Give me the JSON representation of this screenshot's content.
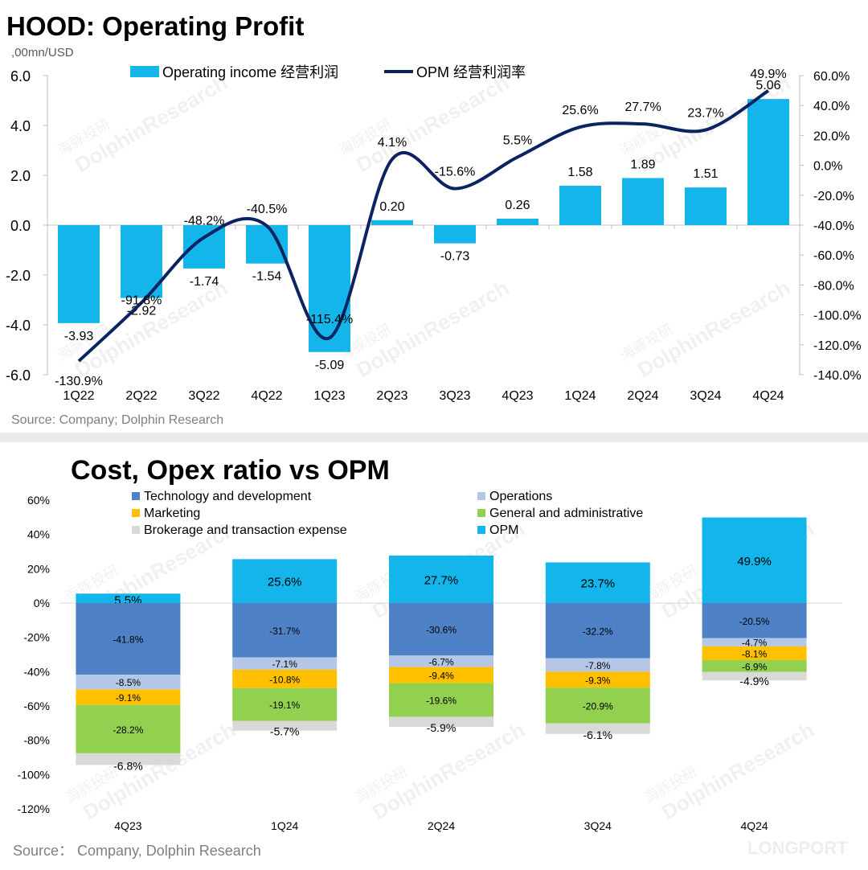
{
  "chart_data": [
    {
      "type": "bar",
      "title": "HOOD: Operating Profit",
      "unit_label": ",00mn/USD",
      "source": "Source: Company; Dolphin Research",
      "categories": [
        "1Q22",
        "2Q22",
        "3Q22",
        "4Q22",
        "1Q23",
        "2Q23",
        "3Q23",
        "4Q23",
        "1Q24",
        "2Q24",
        "3Q24",
        "4Q24"
      ],
      "left_axis": {
        "ticks": [
          "6.0",
          "4.0",
          "2.0",
          "0.0",
          "-2.0",
          "-4.0",
          "-6.0"
        ],
        "ylim": [
          -6,
          6
        ]
      },
      "right_axis": {
        "ticks": [
          "60.0%",
          "40.0%",
          "20.0%",
          "0.0%",
          "-20.0%",
          "-40.0%",
          "-60.0%",
          "-80.0%",
          "-100.0%",
          "-120.0%",
          "-140.0%"
        ],
        "ylim": [
          -140,
          60
        ]
      },
      "series": [
        {
          "name": "Operating income 经营利润",
          "type": "bar",
          "color": "#13b5ea",
          "values": [
            -3.93,
            -2.92,
            -1.74,
            -1.54,
            -5.09,
            0.2,
            -0.73,
            0.26,
            1.58,
            1.89,
            1.51,
            5.06
          ],
          "labels": [
            "-3.93",
            "-2.92",
            "-1.74",
            "-1.54",
            "-5.09",
            "0.20",
            "-0.73",
            "0.26",
            "1.58",
            "1.89",
            "1.51",
            "5.06"
          ]
        },
        {
          "name": "OPM 经营利润率",
          "type": "line",
          "axis": "right",
          "color": "#0b2461",
          "values": [
            -130.9,
            -91.8,
            -48.2,
            -40.5,
            -115.4,
            4.1,
            -15.6,
            5.5,
            25.6,
            27.7,
            23.7,
            49.9
          ],
          "labels": [
            "-130.9%",
            "-91.8%",
            "-48.2%",
            "-40.5%",
            "-115.4%",
            "4.1%",
            "-15.6%",
            "5.5%",
            "25.6%",
            "27.7%",
            "23.7%",
            "49.9%"
          ]
        }
      ]
    },
    {
      "type": "bar",
      "stacked": true,
      "title": "Cost, Opex ratio vs OPM",
      "source": "Source：  Company, Dolphin Research",
      "categories": [
        "4Q23",
        "1Q24",
        "2Q24",
        "3Q24",
        "4Q24"
      ],
      "y_ticks": [
        "60%",
        "40%",
        "20%",
        "0%",
        "-20%",
        "-40%",
        "-60%",
        "-80%",
        "-100%",
        "-120%"
      ],
      "ylim": [
        -120,
        60
      ],
      "legend": [
        {
          "name": "Technology and development",
          "color": "#4f81c7"
        },
        {
          "name": "Operations",
          "color": "#b4c7e7"
        },
        {
          "name": "Marketing",
          "color": "#ffc000"
        },
        {
          "name": "General and administrative",
          "color": "#92d050"
        },
        {
          "name": "Brokerage and transaction expense",
          "color": "#d9d9d9"
        },
        {
          "name": "OPM",
          "color": "#13b5ea"
        }
      ],
      "opm": {
        "values": [
          5.5,
          25.6,
          27.7,
          23.7,
          49.9
        ],
        "labels": [
          "5.5%",
          "25.6%",
          "27.7%",
          "23.7%",
          "49.9%"
        ]
      },
      "series": [
        {
          "name": "Technology and development",
          "values": [
            -41.8,
            -31.7,
            -30.6,
            -32.2,
            -20.5
          ],
          "labels": [
            "-41.8%",
            "-31.7%",
            "-30.6%",
            "-32.2%",
            "-20.5%"
          ]
        },
        {
          "name": "Operations",
          "values": [
            -8.5,
            -7.1,
            -6.7,
            -7.8,
            -4.7
          ],
          "labels": [
            "-8.5%",
            "-7.1%",
            "-6.7%",
            "-7.8%",
            "-4.7%"
          ]
        },
        {
          "name": "Marketing",
          "values": [
            -9.1,
            -10.8,
            -9.4,
            -9.3,
            -8.1
          ],
          "labels": [
            "-9.1%",
            "-10.8%",
            "-9.4%",
            "-9.3%",
            "-8.1%"
          ]
        },
        {
          "name": "General and administrative",
          "values": [
            -28.2,
            -19.1,
            -19.6,
            -20.9,
            -6.9
          ],
          "labels": [
            "-28.2%",
            "-19.1%",
            "-19.6%",
            "-20.9%",
            "-6.9%"
          ]
        },
        {
          "name": "Brokerage and transaction expense",
          "values": [
            -6.8,
            -5.7,
            -5.9,
            -6.1,
            -4.9
          ],
          "labels": [
            "-6.8%",
            "-5.7%",
            "-5.9%",
            "-6.1%",
            "-4.9%"
          ]
        }
      ]
    }
  ],
  "watermark": {
    "text": "DolphinResearch",
    "cn": "海豚投研",
    "brand": "LONGPORT"
  }
}
